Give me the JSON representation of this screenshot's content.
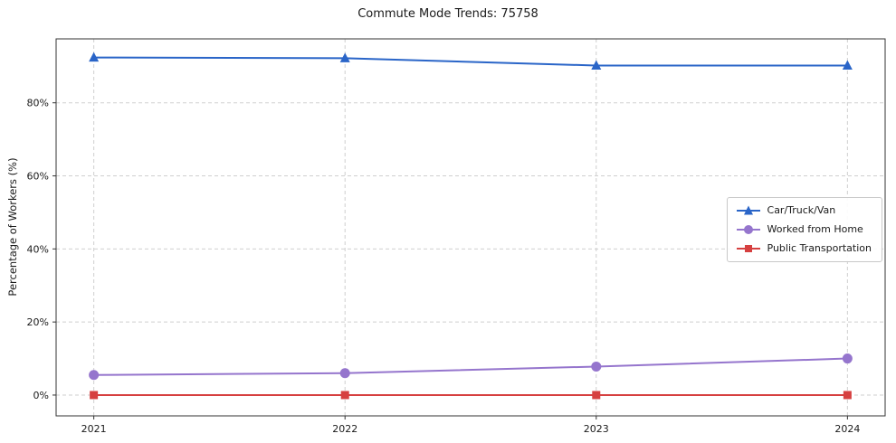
{
  "chart_data": {
    "type": "line",
    "title": "Commute Mode Trends: 75758",
    "xlabel": "",
    "ylabel": "Percentage of Workers (%)",
    "categories": [
      "2021",
      "2022",
      "2023",
      "2024"
    ],
    "series": [
      {
        "name": "Car/Truck/Van",
        "marker": "triangle",
        "color": "#2a65c8",
        "values": [
          92.4,
          92.2,
          90.2,
          90.2
        ]
      },
      {
        "name": "Worked from Home",
        "marker": "circle",
        "color": "#9575cd",
        "values": [
          5.5,
          6.0,
          7.8,
          10.0
        ]
      },
      {
        "name": "Public Transportation",
        "marker": "square",
        "color": "#d64040",
        "values": [
          0.0,
          0.0,
          0.0,
          0.0
        ]
      }
    ],
    "yticks": [
      0,
      20,
      40,
      60,
      80
    ],
    "ytick_labels": [
      "0%",
      "20%",
      "40%",
      "60%",
      "80%"
    ],
    "ylim": [
      -5.7,
      97.5
    ],
    "grid": true,
    "grid_style": "dashed",
    "grid_color": "#cfcfcf",
    "axis_color": "#333333",
    "background": "#ffffff",
    "legend_position": "center-right"
  }
}
